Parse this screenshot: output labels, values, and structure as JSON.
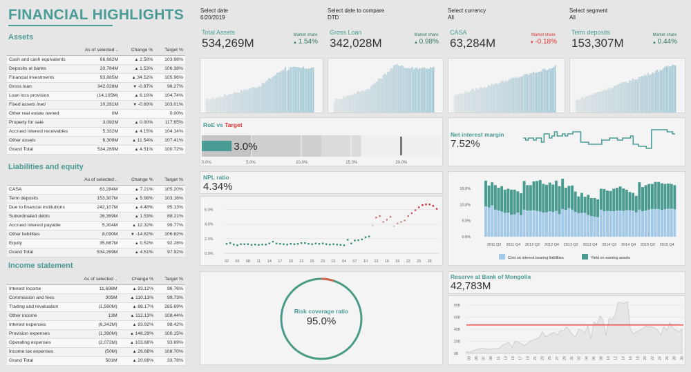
{
  "header": {
    "title": "FINANCIAL HIGHLIGHTS"
  },
  "filters": [
    {
      "label": "Select date",
      "value": "6/20/2019"
    },
    {
      "label": "Select date to compare",
      "value": "DTD"
    },
    {
      "label": "Select currency",
      "value": "All"
    },
    {
      "label": "Select segment",
      "value": "All"
    }
  ],
  "kpis": [
    {
      "label": "Total Assets",
      "value": "534,269M",
      "ms_label": "Market share",
      "ms_value": "1.54%",
      "dir": "up"
    },
    {
      "label": "Gross Loan",
      "value": "342,028M",
      "ms_label": "Market share",
      "ms_value": "0.98%",
      "dir": "up"
    },
    {
      "label": "CASA",
      "value": "63,284M",
      "ms_label": "Market share",
      "ms_value": "-0.18%",
      "dir": "down"
    },
    {
      "label": "Term deposits",
      "value": "153,307M",
      "ms_label": "Market share",
      "ms_value": "0.44%",
      "dir": "up"
    }
  ],
  "columns": [
    "",
    "As of selected ..",
    "Change %",
    "Target %"
  ],
  "assets": {
    "title": "Assets",
    "rows": [
      [
        "Cash and cash equivalents",
        "66,682M",
        "2.58%",
        "103.98%",
        "up"
      ],
      [
        "Deposits at banks",
        "20,784M",
        "1.53%",
        "106.38%",
        "up"
      ],
      [
        "Financial investments",
        "93,885M",
        "34.52%",
        "105.96%",
        "up"
      ],
      [
        "Gross loan",
        "342,028M",
        "-0.87%",
        "98.27%",
        "down"
      ],
      [
        "Loan loss provision",
        "(14,105M)",
        "6.16%",
        "104.74%",
        "up"
      ],
      [
        "Fixed assets /net/",
        "10,281M",
        "-0.69%",
        "103.01%",
        "down"
      ],
      [
        "Other real estate owned",
        "0M",
        "",
        "0.00%",
        ""
      ],
      [
        "Property for sale",
        "3,092M",
        "0.00%",
        "117.65%",
        "up"
      ],
      [
        "Accrued interest receivables",
        "5,332M",
        "4.15%",
        "104.14%",
        "up"
      ],
      [
        "Other assets",
        "6,309M",
        "11.54%",
        "107.41%",
        "up"
      ],
      [
        "Grand Total",
        "534,269M",
        "4.51%",
        "100.72%",
        "up"
      ]
    ]
  },
  "liabilities": {
    "title": "Liabilities and equity",
    "rows": [
      [
        "CASA",
        "63,284M",
        "7.21%",
        "105.20%",
        "up"
      ],
      [
        "Term deposits",
        "153,307M",
        "5.98%",
        "103.16%",
        "up"
      ],
      [
        "Due to financial institutions",
        "242,107M",
        "4.48%",
        "95.13%",
        "up"
      ],
      [
        "Subordinated debts",
        "26,369M",
        "1.53%",
        "88.21%",
        "up"
      ],
      [
        "Accrued interest payable",
        "5,304M",
        "12.32%",
        "99.77%",
        "up"
      ],
      [
        "Other liabilities",
        "8,030M",
        "-14.82%",
        "106.62%",
        "down"
      ],
      [
        "Equity",
        "35,887M",
        "0.52%",
        "92.28%",
        "up"
      ],
      [
        "Grand Total",
        "534,269M",
        "4.51%",
        "97.92%",
        "up"
      ]
    ]
  },
  "income": {
    "title": "Income statement",
    "rows": [
      [
        "Interest income",
        "11,696M",
        "93.12%",
        "96.76%",
        "up"
      ],
      [
        "Commission and fees",
        "305M",
        "110.13%",
        "99.73%",
        "up"
      ],
      [
        "Trading and revaluation",
        "(1,580M)",
        "88.17%",
        "265.69%",
        "up"
      ],
      [
        "Other income",
        "13M",
        "112.13%",
        "108.44%",
        "up"
      ],
      [
        "Interest expenses",
        "(6,342M)",
        "93.92%",
        "98.42%",
        "up"
      ],
      [
        "Provision expenses",
        "(1,390M)",
        "148.29%",
        "100.15%",
        "up"
      ],
      [
        "Operating expenses",
        "(2,072M)",
        "103.68%",
        "93.69%",
        "up"
      ],
      [
        "Income tax expenses",
        "(50M)",
        "26.68%",
        "108.70%",
        "up"
      ],
      [
        "Grand Total",
        "581M",
        "20.69%",
        "33.78%",
        "up"
      ]
    ]
  },
  "roe": {
    "title_a": "RoE vs ",
    "title_b": "Target",
    "value": "3.0%",
    "actual": 3.0,
    "target": 20.0,
    "bands": [
      5,
      12,
      16
    ],
    "ticks": [
      "0.0%",
      "5.0%",
      "10.0%",
      "15.0%",
      "20.0%"
    ]
  },
  "nim": {
    "title": "Net interest margin",
    "value": "7.52%"
  },
  "npl": {
    "title": "NPL ratio",
    "value": "4.34%",
    "yticks": [
      "0.0%",
      "2.0%",
      "4.0%",
      "6.0%"
    ],
    "xticks": [
      "02",
      "05",
      "08",
      "11",
      "14",
      "17",
      "20",
      "23",
      "26",
      "29",
      "01",
      "04",
      "07",
      "10",
      "13",
      "16",
      "19",
      "22",
      "25",
      "28"
    ]
  },
  "risk": {
    "title": "Risk coverage ratio",
    "value": "95.0%",
    "fraction": 0.95
  },
  "reserve": {
    "title": "Reserve at Bank of Mongolia",
    "value": "42,783M",
    "yticks": [
      "0B",
      "20B",
      "40B",
      "60B",
      "80B"
    ],
    "xticks": [
      "03",
      "05",
      "07",
      "09",
      "11",
      "13",
      "15",
      "17",
      "19",
      "21",
      "23",
      "25",
      "27",
      "29",
      "31",
      "02",
      "04",
      "06",
      "08",
      "10",
      "12",
      "14",
      "16",
      "18",
      "20",
      "22",
      "24",
      "26",
      "28",
      "30"
    ]
  },
  "chart_data": [
    {
      "type": "line",
      "title": "NPL ratio",
      "ylabel": "",
      "ylim": [
        0,
        7
      ],
      "values": [
        1.3,
        1.4,
        1.2,
        1.1,
        1.25,
        1.25,
        1.25,
        1.15,
        1.2,
        1.15,
        1.2,
        1.2,
        1.35,
        1.6,
        1.35,
        1.3,
        1.25,
        1.2,
        1.3,
        1.25,
        1.3,
        1.4,
        1.4,
        1.3,
        1.25,
        1.35,
        1.3,
        1.35,
        1.25,
        1.2,
        1.25,
        1.2,
        1.15,
        1.1,
        1.85,
        1.35,
        1.75,
        1.8,
        1.9,
        2.2,
        2.3,
        3.8,
        4.9,
        5.1,
        4.3,
        4.6,
        5.0,
        3.7,
        4.1,
        4.3,
        4.5,
        5.1,
        5.5,
        5.9,
        6.3,
        6.6,
        6.7,
        6.7,
        6.5,
        6.1
      ]
    },
    {
      "type": "bar",
      "title": "Yield vs Cost",
      "ylim": [
        0,
        18
      ],
      "yticks": [
        "0.0%",
        "5.0%",
        "10.0%",
        "15.0%"
      ],
      "categories": [
        "2011 Q2",
        "2011 Q4",
        "2012 Q2",
        "2012 Q4",
        "2013 Q2",
        "2013 Q4",
        "2014 Q2",
        "2014 Q4",
        "2015 Q2",
        "2015 Q4"
      ],
      "series": [
        {
          "name": "Cost on interest bearing liabilities",
          "color": "#a3c9e8",
          "values": [
            9.4,
            9.1,
            9.7,
            8.4,
            8.1,
            7.8,
            7.4,
            7.5,
            6.8,
            6.9,
            7.5,
            6.7,
            8.4,
            8.1,
            8.1,
            8.2,
            8.0,
            7.8,
            7.5,
            7.6,
            7.9,
            7.7,
            8.0,
            7.0,
            8.6,
            8.3,
            8.9,
            8.4,
            7.7,
            7.3,
            7.4,
            7.4,
            6.7,
            6.4,
            6.2,
            6.1,
            8.4,
            7.9,
            8.0,
            7.9,
            7.9,
            8.1,
            8.1,
            8.0,
            8.2,
            8.2,
            8.1,
            7.6,
            8.4,
            7.9,
            8.1,
            8.4,
            8.6,
            8.6,
            8.6,
            8.3,
            8.5,
            8.7,
            8.7,
            8.5
          ]
        },
        {
          "name": "Yield on earning assets",
          "color": "#4a9b8f",
          "values": [
            17.4,
            15.9,
            16.9,
            16.0,
            15.2,
            15.7,
            14.6,
            14.9,
            14.6,
            14.6,
            14.1,
            13.5,
            17.3,
            16.0,
            16.0,
            17.2,
            17.3,
            17.6,
            16.4,
            16.1,
            16.8,
            16.2,
            17.4,
            15.7,
            18.0,
            15.2,
            15.8,
            15.9,
            14.0,
            12.5,
            13.6,
            12.4,
            13.0,
            12.0,
            12.0,
            11.6,
            14.9,
            14.8,
            14.3,
            14.2,
            14.9,
            15.2,
            15.6,
            15.0,
            14.6,
            13.9,
            13.6,
            12.7,
            16.9,
            15.4,
            16.0,
            16.4,
            16.4,
            17.0,
            17.0,
            16.6,
            16.4,
            16.5,
            16.4,
            16.0
          ]
        }
      ]
    },
    {
      "type": "area",
      "title": "Reserve at Bank of Mongolia",
      "ylim": [
        0,
        85
      ],
      "reference_line": 47,
      "values": [
        3,
        2,
        4,
        6,
        7,
        9,
        8,
        7,
        7,
        8,
        8,
        9,
        14,
        16,
        18,
        10,
        20,
        19,
        16,
        13,
        16,
        20,
        22,
        24,
        27,
        36,
        28,
        30,
        33,
        35,
        30,
        38,
        37,
        44,
        38,
        30,
        28,
        40,
        38,
        33,
        46,
        24,
        52,
        48,
        62,
        55,
        30,
        58,
        56,
        64,
        85,
        84,
        83,
        86,
        40,
        32,
        36,
        38,
        41,
        45,
        44,
        44,
        42,
        38,
        30,
        44,
        38,
        51,
        42,
        38,
        36,
        40
      ]
    }
  ]
}
